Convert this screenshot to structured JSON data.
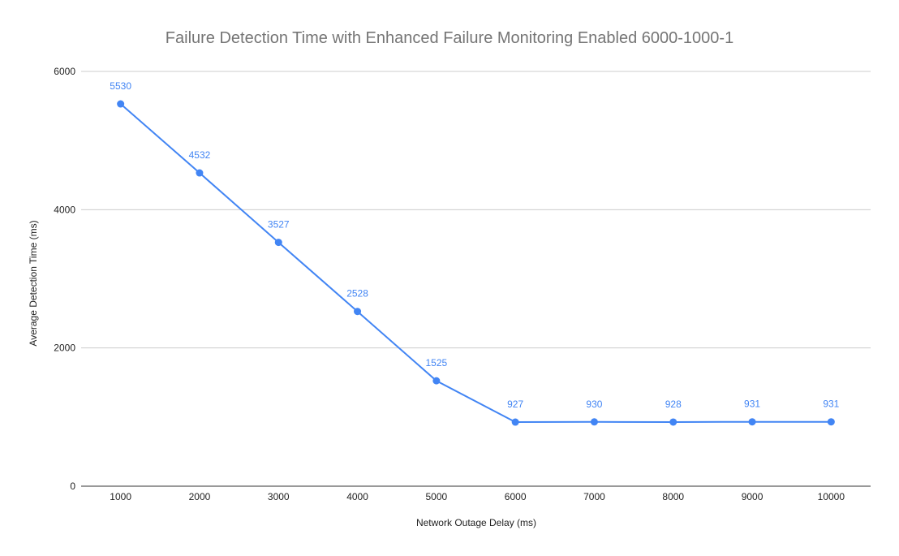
{
  "chart_data": {
    "type": "line",
    "title": "Failure Detection Time with Enhanced Failure Monitoring Enabled 6000-1000-1",
    "xlabel": "Network Outage Delay (ms)",
    "ylabel": "Average Detection Time (ms)",
    "categories": [
      "1000",
      "2000",
      "3000",
      "4000",
      "5000",
      "6000",
      "7000",
      "8000",
      "9000",
      "10000"
    ],
    "series": [
      {
        "values": [
          5530,
          4532,
          3527,
          2528,
          1525,
          927,
          930,
          928,
          931,
          931
        ],
        "color": "#4285f4"
      }
    ],
    "yticks": [
      "0",
      "2000",
      "4000",
      "6000"
    ],
    "ylim": [
      0,
      6000
    ],
    "grid": true,
    "legend": "none",
    "data_labels": true
  }
}
